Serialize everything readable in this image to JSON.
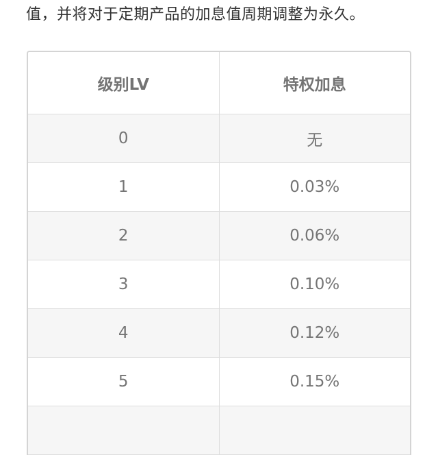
{
  "intro_text": "值，并将对于定期产品的加息值周期调整为永久。",
  "table": {
    "headers": [
      "级别LV",
      "特权加息"
    ],
    "rows": [
      {
        "level": "0",
        "bonus": "无"
      },
      {
        "level": "1",
        "bonus": "0.03%"
      },
      {
        "level": "2",
        "bonus": "0.06%"
      },
      {
        "level": "3",
        "bonus": "0.10%"
      },
      {
        "level": "4",
        "bonus": "0.12%"
      },
      {
        "level": "5",
        "bonus": "0.15%"
      },
      {
        "level": "",
        "bonus": ""
      }
    ]
  }
}
